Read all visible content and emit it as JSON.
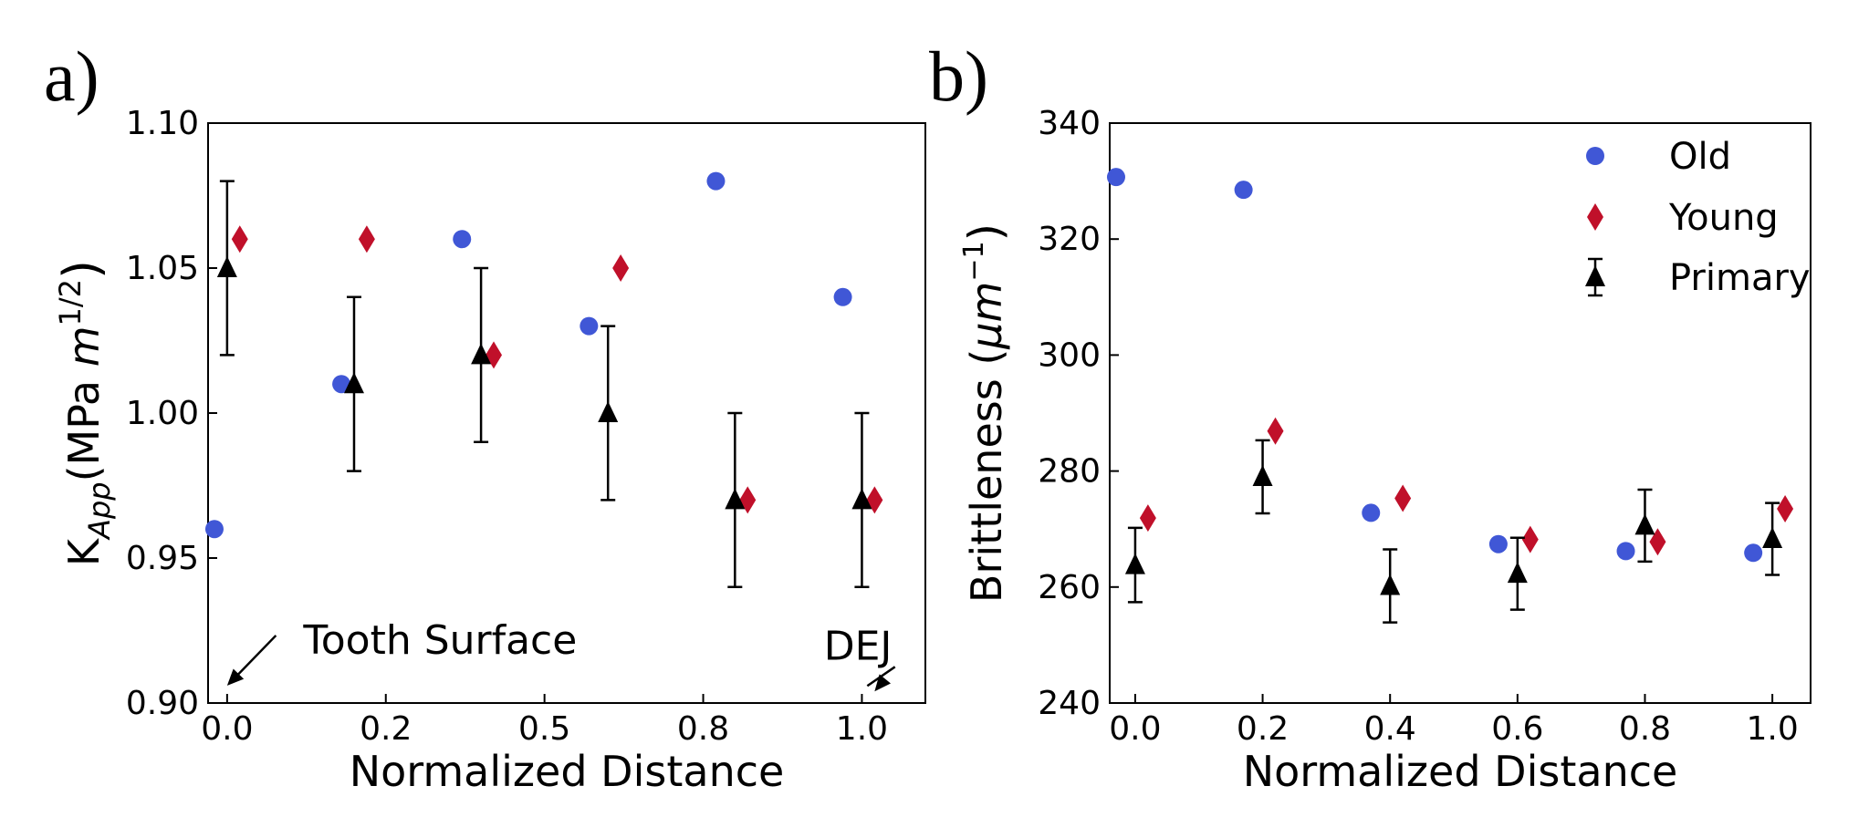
{
  "colors": {
    "old": "#4057d6",
    "young": "#c0102a",
    "primary": "#000000"
  },
  "chart_data": [
    {
      "type": "scatter",
      "panel_label": "a)",
      "xlabel": "Normalized Distance",
      "ylabel": {
        "main": "K",
        "sub": "App",
        "units_pre": "(MPa ",
        "units_m": "m",
        "units_sup": "1/2",
        "units_post": ")"
      },
      "xlim": [
        -0.03,
        1.1
      ],
      "ylim": [
        0.9,
        1.1
      ],
      "xticks": [
        0.0,
        0.25,
        0.5,
        0.75,
        1.0
      ],
      "xtick_labels": [
        "0.0",
        "0.2",
        "0.5",
        "0.8",
        "1.0"
      ],
      "yticks": [
        0.9,
        0.95,
        1.0,
        1.05,
        1.1
      ],
      "ytick_labels": [
        "0.90",
        "0.95",
        "1.00",
        "1.05",
        "1.10"
      ],
      "annotations": [
        {
          "text": "Tooth Surface",
          "x": 0.12,
          "y": 0.917,
          "arrow_to": [
            0.0,
            0.906
          ]
        },
        {
          "text": "DEJ",
          "x": 0.94,
          "y": 0.915,
          "arrow_to": [
            1.02,
            0.904
          ]
        }
      ],
      "series": [
        {
          "name": "Old",
          "marker": "circle",
          "x": [
            -0.02,
            0.18,
            0.37,
            0.57,
            0.77,
            0.97
          ],
          "y": [
            0.96,
            1.01,
            1.06,
            1.03,
            1.08,
            1.04
          ]
        },
        {
          "name": "Young",
          "marker": "diamond",
          "x": [
            0.02,
            0.22,
            0.42,
            0.62,
            0.82,
            1.02
          ],
          "y": [
            1.06,
            1.06,
            1.02,
            1.05,
            0.97,
            0.97
          ]
        },
        {
          "name": "Primary",
          "marker": "triangle",
          "x": [
            0.0,
            0.2,
            0.4,
            0.6,
            0.8,
            1.0
          ],
          "y": [
            1.05,
            1.01,
            1.02,
            1.0,
            0.97,
            0.97
          ],
          "err": [
            0.03,
            0.03,
            0.03,
            0.03,
            0.03,
            0.03
          ]
        }
      ]
    },
    {
      "type": "scatter",
      "panel_label": "b)",
      "xlabel": "Normalized Distance",
      "ylabel": {
        "main": "Brittleness (",
        "units_m": "μm",
        "units_sup": "−1",
        "units_post": ")"
      },
      "xlim": [
        -0.04,
        1.06
      ],
      "ylim": [
        240,
        340
      ],
      "xticks": [
        0.0,
        0.2,
        0.4,
        0.6,
        0.8,
        1.0
      ],
      "xtick_labels": [
        "0.0",
        "0.2",
        "0.4",
        "0.6",
        "0.8",
        "1.0"
      ],
      "yticks": [
        240,
        260,
        280,
        300,
        320,
        340
      ],
      "ytick_labels": [
        "240",
        "260",
        "280",
        "300",
        "320",
        "340"
      ],
      "legend": {
        "position": "top-right",
        "entries": [
          "Old",
          "Young",
          "Primary"
        ]
      },
      "series": [
        {
          "name": "Old",
          "marker": "circle",
          "x": [
            -0.03,
            0.17,
            0.37,
            0.57,
            0.77,
            0.97
          ],
          "y": [
            330.7,
            328.5,
            272.8,
            267.4,
            266.2,
            265.9
          ]
        },
        {
          "name": "Young",
          "marker": "diamond",
          "x": [
            0.02,
            0.22,
            0.42,
            0.62,
            0.82,
            1.02
          ],
          "y": [
            271.9,
            286.9,
            275.3,
            268.2,
            267.8,
            273.5
          ]
        },
        {
          "name": "Primary",
          "marker": "triangle",
          "x": [
            0.0,
            0.2,
            0.4,
            0.6,
            0.8,
            1.0
          ],
          "y": [
            263.8,
            279.0,
            260.2,
            262.3,
            270.6,
            268.3
          ],
          "err": [
            6.4,
            6.3,
            6.3,
            6.2,
            6.2,
            6.2
          ]
        }
      ]
    }
  ]
}
